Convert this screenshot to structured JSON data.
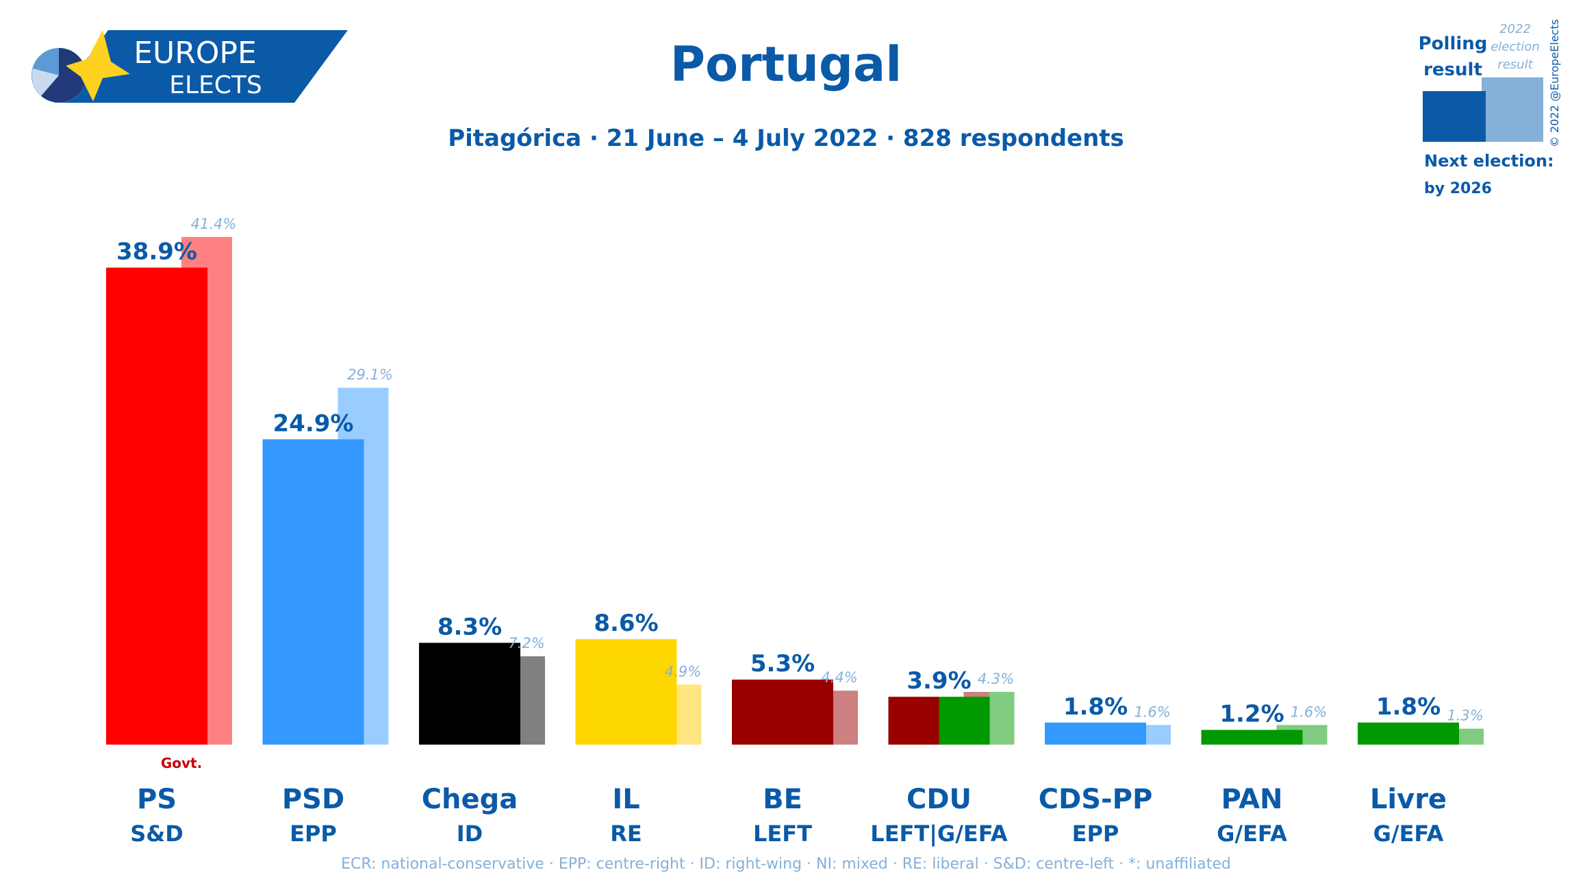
{
  "header": {
    "logo_line1": "EUROPE",
    "logo_line2": "ELECTS",
    "title": "Portugal",
    "subtitle": "Pitagórica · 21 June – 4 July 2022 · 828 respondents"
  },
  "legend": {
    "polling_label_1": "Polling",
    "polling_label_2": "result",
    "election_label_1": "2022",
    "election_label_2": "election",
    "election_label_3": "result",
    "next_election_1": "Next election:",
    "next_election_2": "by 2026",
    "copyright": "© 2022 @EuropeElects",
    "polling_color": "#0a5aa8",
    "election_color": "#85b0d8"
  },
  "footer": {
    "groups_note": "ECR: national-conservative · EPP: centre-right · ID: right-wing · NI: mixed · RE: liberal · S&D: centre-left · *: unaffiliated"
  },
  "chart_data": {
    "type": "bar",
    "title": "Portugal",
    "ylabel": "",
    "xlabel": "",
    "ylim": [
      0,
      45
    ],
    "series": [
      {
        "name": "Polling result",
        "values": [
          38.9,
          24.9,
          8.3,
          8.6,
          5.3,
          3.9,
          1.8,
          1.2,
          1.8
        ]
      },
      {
        "name": "2022 election result",
        "values": [
          41.4,
          29.1,
          7.2,
          4.9,
          4.4,
          4.3,
          1.6,
          1.6,
          1.3
        ]
      }
    ],
    "categories": [
      "PS",
      "PSD",
      "Chega",
      "IL",
      "BE",
      "CDU",
      "CDS-PP",
      "PAN",
      "Livre"
    ],
    "groups": [
      "S&D",
      "EPP",
      "ID",
      "RE",
      "LEFT",
      "LEFT|G/EFA",
      "EPP",
      "G/EFA",
      "G/EFA"
    ],
    "poll_labels": [
      "38.9%",
      "24.9%",
      "8.3%",
      "8.6%",
      "5.3%",
      "3.9%",
      "1.8%",
      "1.2%",
      "1.8%"
    ],
    "election_labels": [
      "41.4%",
      "29.1%",
      "7.2%",
      "4.9%",
      "4.4%",
      "4.3%",
      "1.6%",
      "1.6%",
      "1.3%"
    ],
    "poll_colors": [
      "#ff0000",
      "#3399ff",
      "#000000",
      "#ffd700",
      "#990000",
      "#990000",
      "#3399ff",
      "#009900",
      "#009900"
    ],
    "poll_colors_secondary": [
      "",
      "",
      "",
      "",
      "",
      "#009900",
      "",
      "",
      ""
    ],
    "election_colors": [
      "#ff8080",
      "#99ccff",
      "#808080",
      "#ffe680",
      "#cc8080",
      "#cc8080",
      "#99ccff",
      "#80cc80",
      "#80cc80"
    ],
    "election_colors_secondary": [
      "",
      "",
      "",
      "",
      "",
      "#80cc80",
      "",
      "",
      ""
    ],
    "annotations": [
      {
        "category": "PS",
        "text": "Govt."
      }
    ]
  }
}
